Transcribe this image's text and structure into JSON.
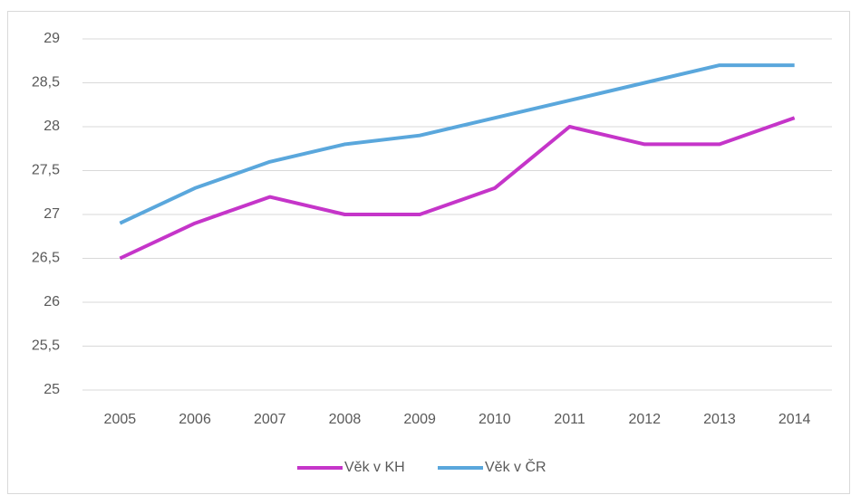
{
  "chart_data": {
    "type": "line",
    "categories": [
      "2005",
      "2006",
      "2007",
      "2008",
      "2009",
      "2010",
      "2011",
      "2012",
      "2013",
      "2014"
    ],
    "series": [
      {
        "name": "Věk v KH",
        "color": "#c535c9",
        "values": [
          26.5,
          26.9,
          27.2,
          27.0,
          27.0,
          27.3,
          28.0,
          27.8,
          27.8,
          28.1
        ]
      },
      {
        "name": "Věk v ČR",
        "color": "#5aa7dc",
        "values": [
          26.9,
          27.3,
          27.6,
          27.8,
          27.9,
          28.1,
          28.3,
          28.5,
          28.7,
          28.7
        ]
      }
    ],
    "ylim": [
      25,
      29
    ],
    "yticks": [
      25,
      {
        "value": 25.5,
        "label": "25,5"
      },
      26,
      {
        "value": 26.5,
        "label": "26,5"
      },
      27,
      {
        "value": 27.5,
        "label": "27,5"
      },
      28,
      {
        "value": 28.5,
        "label": "28,5"
      },
      29
    ],
    "grid": true,
    "legend": "bottom"
  }
}
